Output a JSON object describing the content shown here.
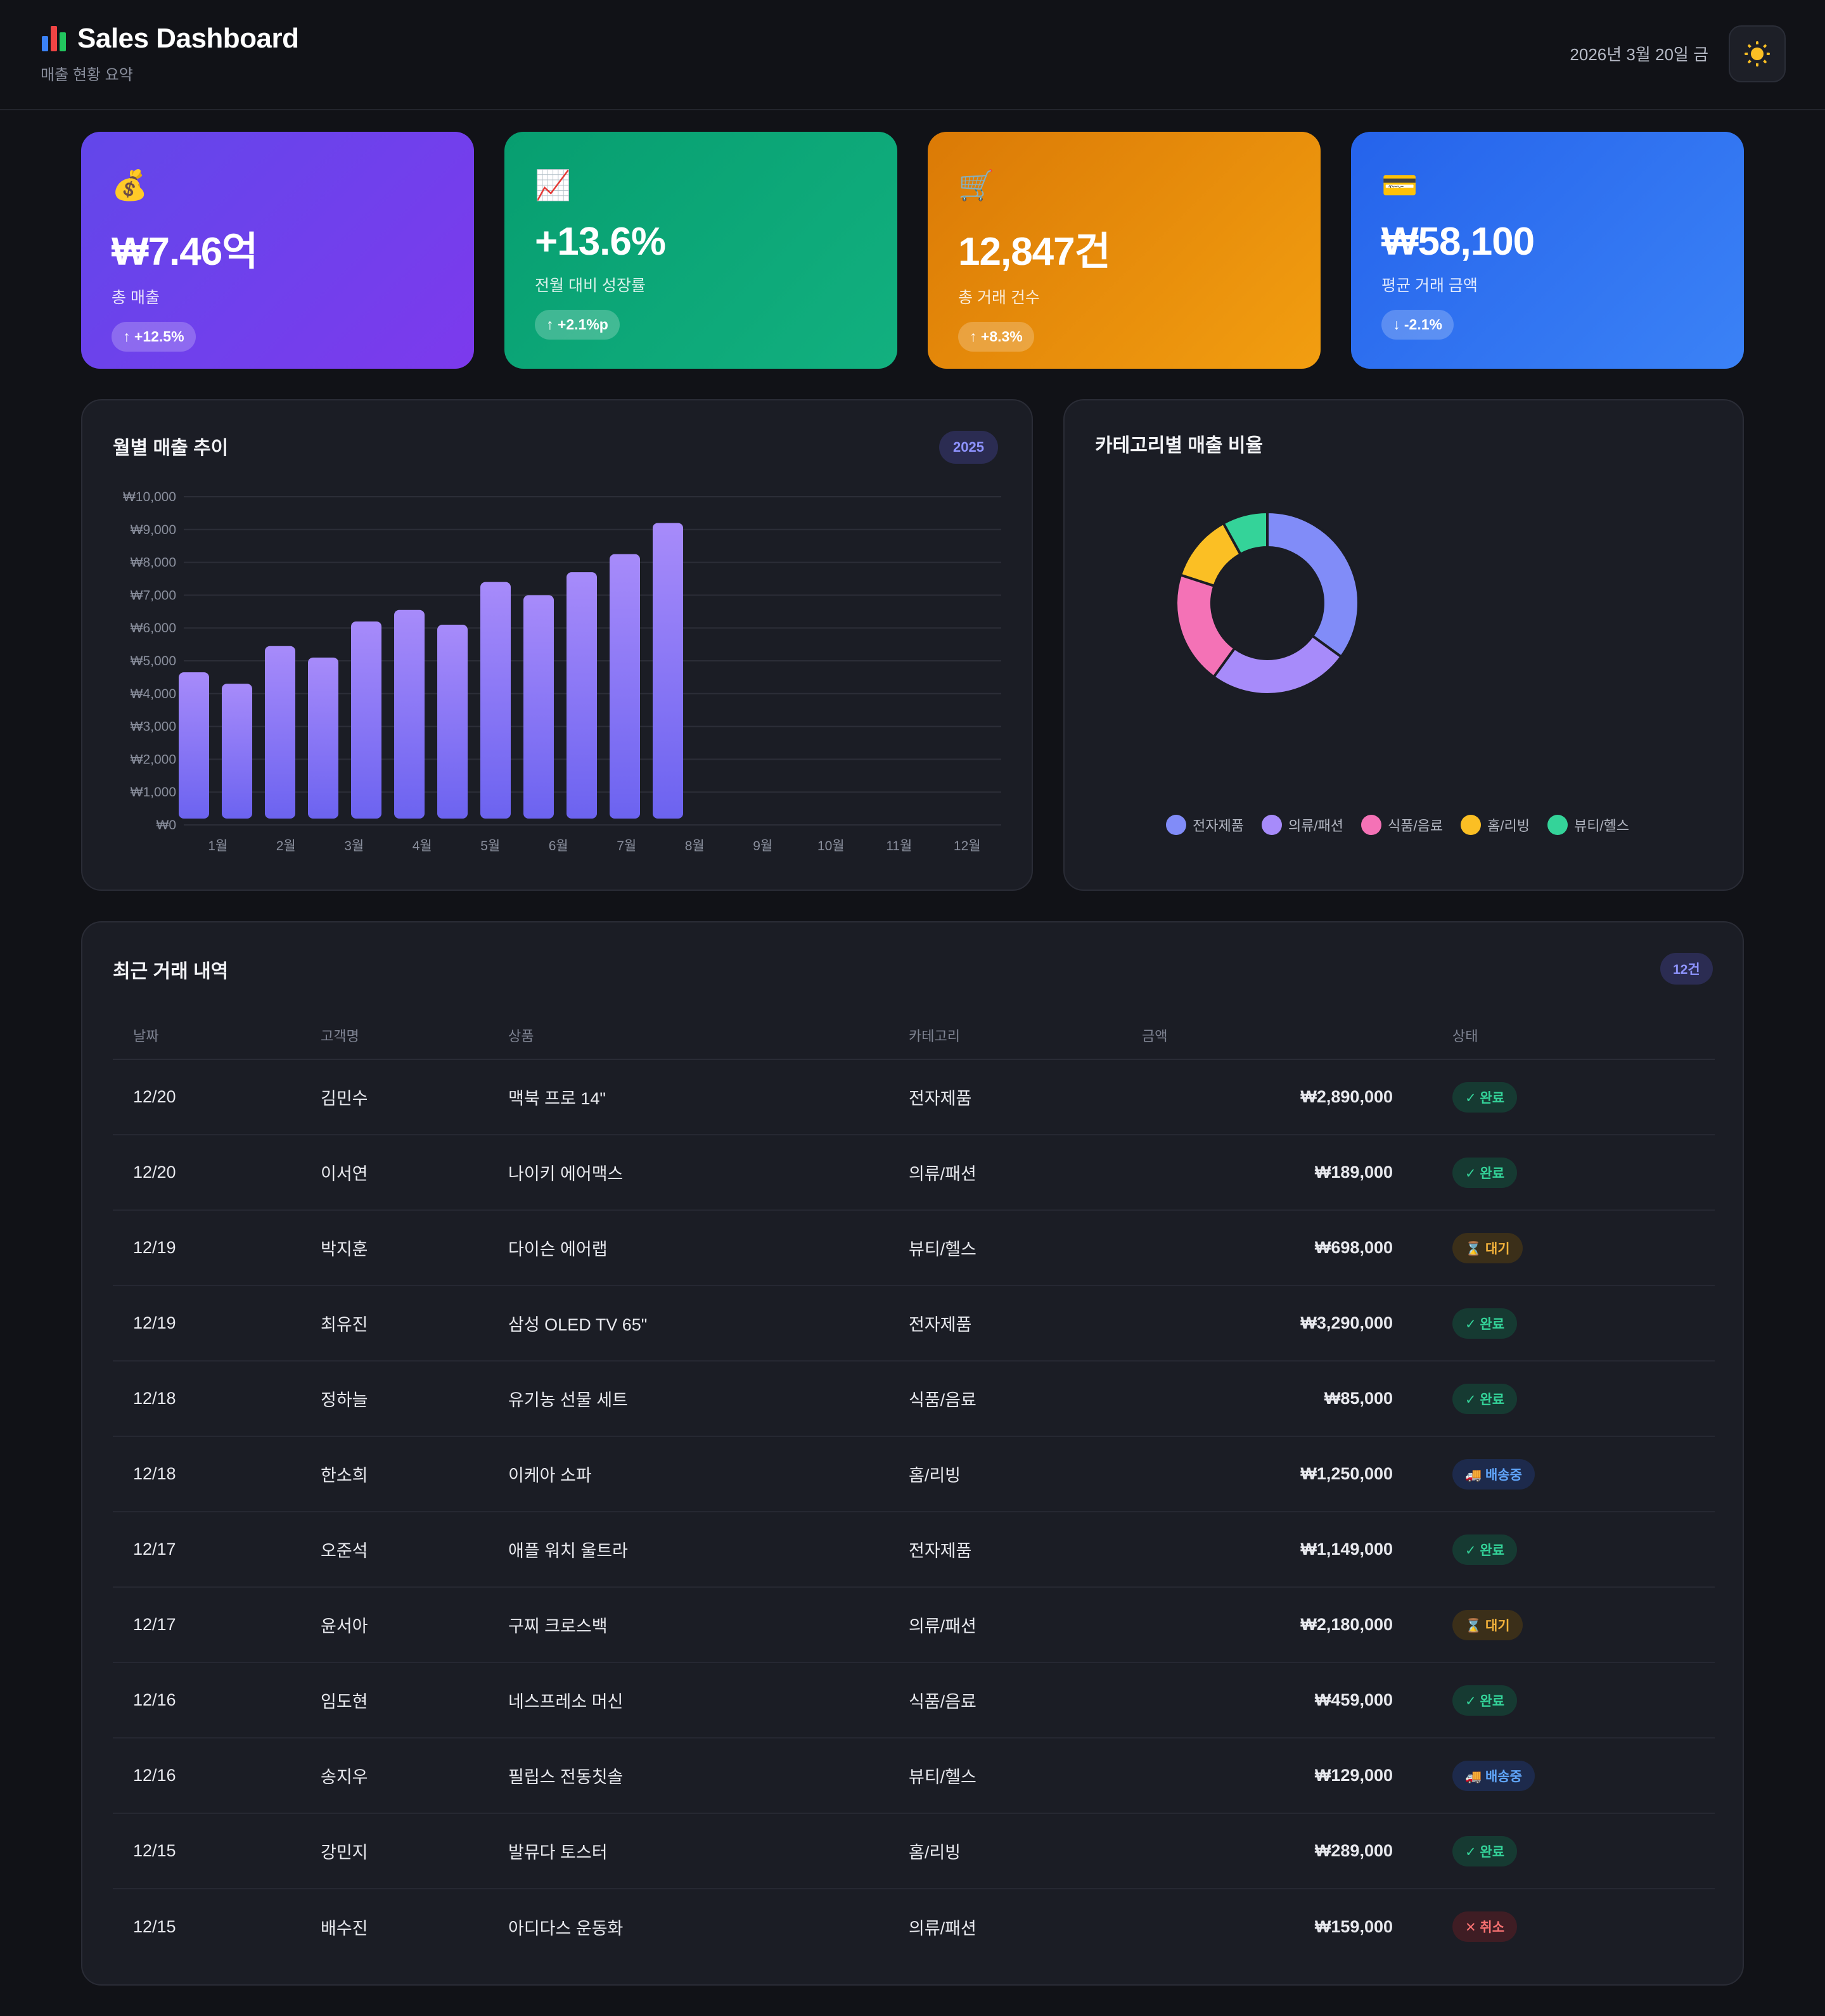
{
  "header": {
    "icon": "bar-chart-icon",
    "title": "Sales Dashboard",
    "subtitle": "매출 현황 요약",
    "date": "2026년 3월 20일 금",
    "theme_toggle_icon": "sun-icon"
  },
  "kpis": [
    {
      "icon_name": "money-bag-icon",
      "icon": "💰",
      "value": "₩7.46억",
      "label": "총 매출",
      "badge": "↑ +12.5%",
      "color": "#6d3ff0"
    },
    {
      "icon_name": "chart-up-icon",
      "icon": "📈",
      "value": "+13.6%",
      "label": "전월 대비 성장률",
      "badge": "↑ +2.1%p",
      "color": "#0ea874"
    },
    {
      "icon_name": "cart-icon",
      "icon": "🛒",
      "value": "12,847건",
      "label": "총 거래 건수",
      "badge": "↑ +8.3%",
      "color": "#ea8a0b"
    },
    {
      "icon_name": "card-icon",
      "icon": "💳",
      "value": "₩58,100",
      "label": "평균 거래 금액",
      "badge": "↓ -2.1%",
      "color": "#2f6ff0"
    }
  ],
  "monthly_chart": {
    "title": "월별 매출 추이",
    "year_badge": "2025"
  },
  "category_chart": {
    "title": "카테고리별 매출 비율"
  },
  "chart_data": [
    {
      "type": "bar",
      "title": "월별 매출 추이",
      "categories": [
        "1월",
        "2월",
        "3월",
        "4월",
        "5월",
        "6월",
        "7월",
        "8월",
        "9월",
        "10월",
        "11월",
        "12월"
      ],
      "values": [
        4650,
        4300,
        5450,
        5100,
        6200,
        6550,
        6100,
        7400,
        7000,
        7700,
        8250,
        9200
      ],
      "ylim": [
        0,
        10000
      ],
      "yticks": [
        "₩0",
        "₩1,000",
        "₩2,000",
        "₩3,000",
        "₩4,000",
        "₩5,000",
        "₩6,000",
        "₩7,000",
        "₩8,000",
        "₩9,000",
        "₩10,000"
      ],
      "grid": true,
      "color": "#8b7cf6"
    },
    {
      "type": "pie",
      "title": "카테고리별 매출 비율",
      "categories": [
        "전자제품",
        "의류/패션",
        "식품/음료",
        "홈/리빙",
        "뷰티/헬스"
      ],
      "values": [
        35,
        25,
        20,
        12,
        8
      ],
      "colors": [
        "#818cf8",
        "#a78bfa",
        "#f472b6",
        "#fbbf24",
        "#34d399"
      ],
      "legend": "bottom"
    }
  ],
  "table": {
    "title": "최근 거래 내역",
    "count_badge": "12건",
    "columns": [
      "날짜",
      "고객명",
      "상품",
      "카테고리",
      "금액",
      "상태"
    ],
    "rows": [
      {
        "date": "12/20",
        "customer": "김민수",
        "product": "맥북 프로 14\"",
        "category": "전자제품",
        "amount": "₩2,890,000",
        "status": "✓ 완료",
        "status_type": "done"
      },
      {
        "date": "12/20",
        "customer": "이서연",
        "product": "나이키 에어맥스",
        "category": "의류/패션",
        "amount": "₩189,000",
        "status": "✓ 완료",
        "status_type": "done"
      },
      {
        "date": "12/19",
        "customer": "박지훈",
        "product": "다이슨 에어랩",
        "category": "뷰티/헬스",
        "amount": "₩698,000",
        "status": "⌛ 대기",
        "status_type": "wait"
      },
      {
        "date": "12/19",
        "customer": "최유진",
        "product": "삼성 OLED TV 65\"",
        "category": "전자제품",
        "amount": "₩3,290,000",
        "status": "✓ 완료",
        "status_type": "done"
      },
      {
        "date": "12/18",
        "customer": "정하늘",
        "product": "유기농 선물 세트",
        "category": "식품/음료",
        "amount": "₩85,000",
        "status": "✓ 완료",
        "status_type": "done"
      },
      {
        "date": "12/18",
        "customer": "한소희",
        "product": "이케아 소파",
        "category": "홈/리빙",
        "amount": "₩1,250,000",
        "status": "🚚 배송중",
        "status_type": "ship"
      },
      {
        "date": "12/17",
        "customer": "오준석",
        "product": "애플 워치 울트라",
        "category": "전자제품",
        "amount": "₩1,149,000",
        "status": "✓ 완료",
        "status_type": "done"
      },
      {
        "date": "12/17",
        "customer": "윤서아",
        "product": "구찌 크로스백",
        "category": "의류/패션",
        "amount": "₩2,180,000",
        "status": "⌛ 대기",
        "status_type": "wait"
      },
      {
        "date": "12/16",
        "customer": "임도현",
        "product": "네스프레소 머신",
        "category": "식품/음료",
        "amount": "₩459,000",
        "status": "✓ 완료",
        "status_type": "done"
      },
      {
        "date": "12/16",
        "customer": "송지우",
        "product": "필립스 전동칫솔",
        "category": "뷰티/헬스",
        "amount": "₩129,000",
        "status": "🚚 배송중",
        "status_type": "ship"
      },
      {
        "date": "12/15",
        "customer": "강민지",
        "product": "발뮤다 토스터",
        "category": "홈/리빙",
        "amount": "₩289,000",
        "status": "✓ 완료",
        "status_type": "done"
      },
      {
        "date": "12/15",
        "customer": "배수진",
        "product": "아디다스 운동화",
        "category": "의류/패션",
        "amount": "₩159,000",
        "status": "✕ 취소",
        "status_type": "cancel"
      }
    ]
  }
}
